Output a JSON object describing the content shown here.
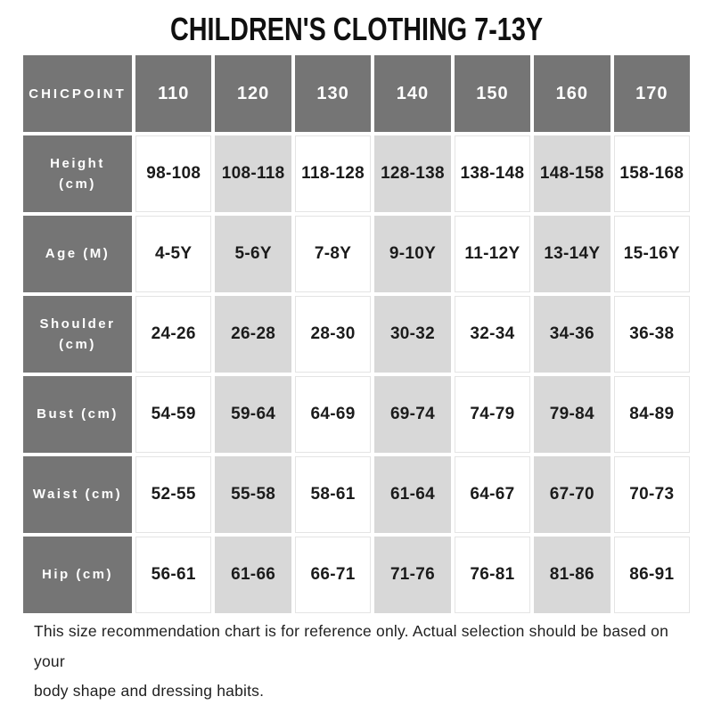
{
  "title": "CHILDREN'S CLOTHING 7-13Y",
  "chart_data": {
    "type": "table",
    "title": "CHILDREN'S CLOTHING 7-13Y",
    "corner_label": "CHICPOINT",
    "size_columns": [
      "110",
      "120",
      "130",
      "140",
      "150",
      "160",
      "170"
    ],
    "shaded_size_columns": [
      "120",
      "140",
      "160"
    ],
    "rows": [
      {
        "label": "Height (cm)",
        "values": [
          "98-108",
          "108-118",
          "118-128",
          "128-138",
          "138-148",
          "148-158",
          "158-168"
        ]
      },
      {
        "label": "Age (M)",
        "values": [
          "4-5Y",
          "5-6Y",
          "7-8Y",
          "9-10Y",
          "11-12Y",
          "13-14Y",
          "15-16Y"
        ]
      },
      {
        "label": "Shoulder (cm)",
        "values": [
          "24-26",
          "26-28",
          "28-30",
          "30-32",
          "32-34",
          "34-36",
          "36-38"
        ]
      },
      {
        "label": "Bust (cm)",
        "values": [
          "54-59",
          "59-64",
          "64-69",
          "69-74",
          "74-79",
          "79-84",
          "84-89"
        ]
      },
      {
        "label": "Waist (cm)",
        "values": [
          "52-55",
          "55-58",
          "58-61",
          "61-64",
          "64-67",
          "67-70",
          "70-73"
        ]
      },
      {
        "label": "Hip (cm)",
        "values": [
          "56-61",
          "61-66",
          "66-71",
          "71-76",
          "76-81",
          "81-86",
          "86-91"
        ]
      }
    ],
    "note": "This size recommendation chart is for reference only. Actual selection should be based on your body shape and dressing habits."
  },
  "footer": {
    "line1": "This size recommendation chart is for reference only. Actual selection should be based on your",
    "line2": "body shape and dressing habits."
  },
  "colors": {
    "header_cell_bg": "#757575",
    "shaded_cell_bg": "#d8d8d8",
    "white_cell_border": "#e4e4e4",
    "header_text": "#ffffff",
    "data_text": "#1b1b1b",
    "note_text": "#1f1f1f"
  }
}
